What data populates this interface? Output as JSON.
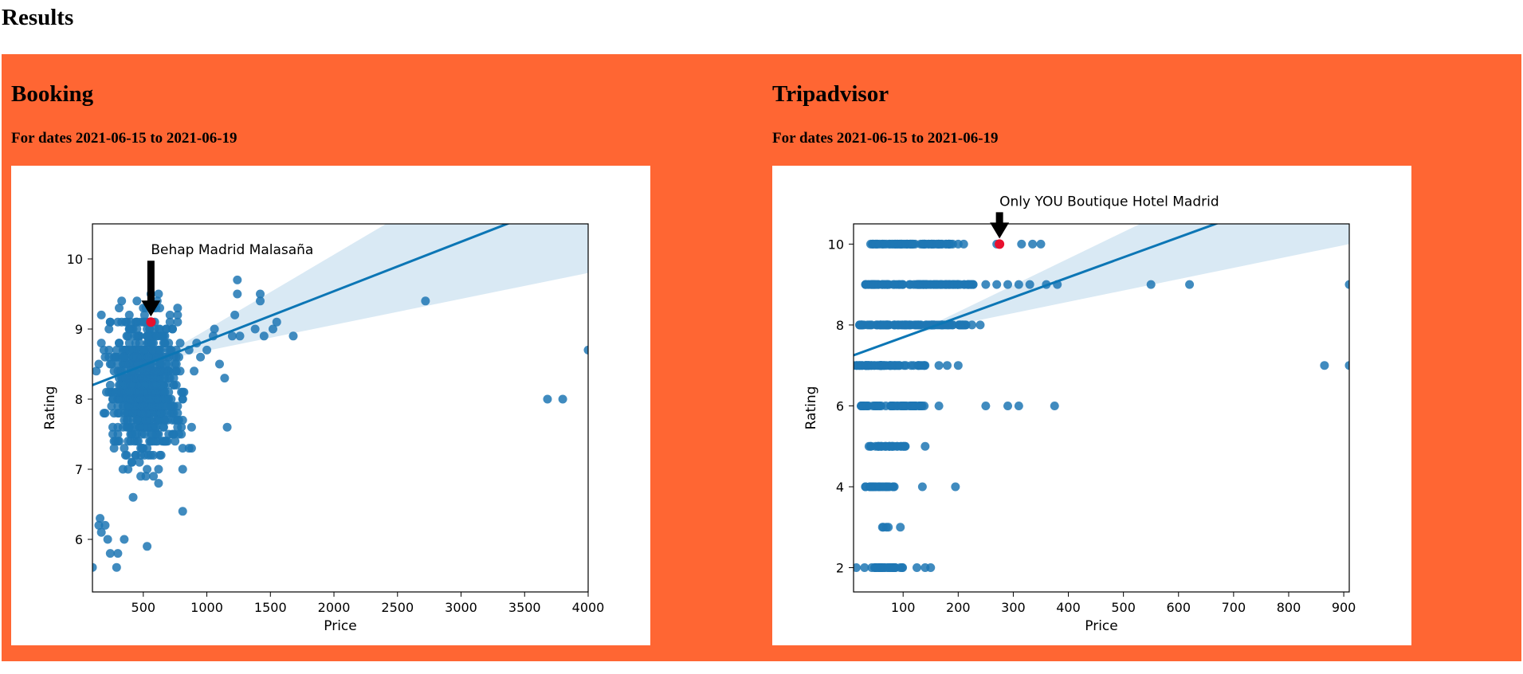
{
  "page": {
    "title": "Results"
  },
  "theme": {
    "panel_bg": "#ff6633",
    "point_color": "#1f77b4",
    "line_color": "#0c76b5",
    "band_color": "#c9dff0",
    "highlight_color": "#e8102e"
  },
  "sections": [
    {
      "name": "Booking",
      "subtitle": "For dates 2021-06-15 to 2021-06-19",
      "chart_data": {
        "type": "scatter",
        "xlabel": "Price",
        "ylabel": "Rating",
        "xlim": [
          100,
          4000
        ],
        "ylim": [
          5.25,
          10.5
        ],
        "xticks": [
          500,
          1000,
          1500,
          2000,
          2500,
          3000,
          3500,
          4000
        ],
        "yticks": [
          6,
          7,
          8,
          9,
          10
        ],
        "grid": false,
        "regression": {
          "x1": 100,
          "y1": 8.2,
          "x2": 4000,
          "y2": 10.95,
          "band_at_xmax": [
            9.8,
            12.2
          ]
        },
        "highlight": {
          "label": "Behap Madrid Malasaña",
          "x": 560,
          "y": 9.1
        },
        "outliers": [
          [
            100,
            5.6
          ],
          [
            150,
            6.2
          ],
          [
            160,
            6.3
          ],
          [
            170,
            6.1
          ],
          [
            200,
            6.2
          ],
          [
            220,
            6.0
          ],
          [
            240,
            5.8
          ],
          [
            290,
            5.6
          ],
          [
            300,
            5.8
          ],
          [
            350,
            6.0
          ],
          [
            420,
            6.6
          ],
          [
            480,
            6.9
          ],
          [
            520,
            6.9
          ],
          [
            530,
            5.9
          ],
          [
            620,
            6.8
          ],
          [
            700,
            8.0
          ],
          [
            740,
            8.3
          ],
          [
            770,
            7.8
          ],
          [
            810,
            6.4
          ],
          [
            800,
            7.5
          ],
          [
            810,
            7.3
          ],
          [
            820,
            8.1
          ],
          [
            860,
            7.3
          ],
          [
            880,
            7.6
          ],
          [
            880,
            7.3
          ],
          [
            900,
            8.4
          ],
          [
            920,
            8.8
          ],
          [
            950,
            8.6
          ],
          [
            1000,
            8.7
          ],
          [
            1050,
            8.9
          ],
          [
            1060,
            9.0
          ],
          [
            1100,
            8.5
          ],
          [
            1140,
            8.3
          ],
          [
            1160,
            7.6
          ],
          [
            1200,
            8.9
          ],
          [
            1220,
            9.2
          ],
          [
            1240,
            9.7
          ],
          [
            1240,
            9.5
          ],
          [
            1260,
            8.9
          ],
          [
            1380,
            9.0
          ],
          [
            1420,
            9.5
          ],
          [
            1420,
            9.4
          ],
          [
            1450,
            8.9
          ],
          [
            1520,
            9.0
          ],
          [
            1550,
            9.1
          ],
          [
            1680,
            8.9
          ],
          [
            2720,
            9.4
          ],
          [
            3680,
            8.0
          ],
          [
            3800,
            8.0
          ],
          [
            4000,
            8.7
          ]
        ],
        "cluster": {
          "x_range": [
            120,
            900
          ],
          "y_range": [
            6.5,
            9.9
          ],
          "count": 700
        }
      }
    },
    {
      "name": "Tripadvisor",
      "subtitle": "For dates 2021-06-15 to 2021-06-19",
      "chart_data": {
        "type": "scatter",
        "xlabel": "Price",
        "ylabel": "Rating",
        "xlim": [
          10,
          910
        ],
        "ylim": [
          1.4,
          10.5
        ],
        "xticks": [
          100,
          200,
          300,
          400,
          500,
          600,
          700,
          800,
          900
        ],
        "yticks": [
          2,
          4,
          6,
          8,
          10
        ],
        "grid": false,
        "regression": {
          "x1": 10,
          "y1": 7.25,
          "x2": 910,
          "y2": 11.7,
          "band_at_xmax": [
            10.0,
            13.0
          ]
        },
        "highlight": {
          "label": "Only YOU Boutique Hotel Madrid",
          "x": 275,
          "y": 10
        },
        "rows": [
          {
            "y": 10,
            "x_range": [
              40,
              190
            ],
            "count": 70
          },
          {
            "y": 9,
            "x_range": [
              30,
              230
            ],
            "count": 100
          },
          {
            "y": 8,
            "x_range": [
              20,
              215
            ],
            "count": 110
          },
          {
            "y": 7,
            "x_range": [
              15,
              140
            ],
            "count": 60
          },
          {
            "y": 6,
            "x_range": [
              20,
              140
            ],
            "count": 60
          },
          {
            "y": 5,
            "x_range": [
              30,
              105
            ],
            "count": 30
          },
          {
            "y": 4,
            "x_range": [
              30,
              90
            ],
            "count": 22
          },
          {
            "y": 3,
            "x_range": [
              50,
              80
            ],
            "count": 4
          },
          {
            "y": 2,
            "x_range": [
              40,
              100
            ],
            "count": 30
          }
        ],
        "points": [
          [
            200,
            10
          ],
          [
            210,
            10
          ],
          [
            270,
            10
          ],
          [
            315,
            10
          ],
          [
            335,
            10
          ],
          [
            350,
            10
          ],
          [
            250,
            9
          ],
          [
            270,
            9
          ],
          [
            290,
            9
          ],
          [
            310,
            9
          ],
          [
            330,
            9
          ],
          [
            360,
            9
          ],
          [
            380,
            9
          ],
          [
            550,
            9
          ],
          [
            620,
            9
          ],
          [
            910,
            9
          ],
          [
            225,
            8
          ],
          [
            240,
            8
          ],
          [
            10,
            7
          ],
          [
            165,
            7
          ],
          [
            180,
            7
          ],
          [
            200,
            7
          ],
          [
            165,
            6
          ],
          [
            250,
            6
          ],
          [
            290,
            6
          ],
          [
            310,
            6
          ],
          [
            375,
            6
          ],
          [
            140,
            5
          ],
          [
            135,
            4
          ],
          [
            195,
            4
          ],
          [
            95,
            3
          ],
          [
            15,
            2
          ],
          [
            30,
            2
          ],
          [
            125,
            2
          ],
          [
            140,
            2
          ],
          [
            150,
            2
          ],
          [
            865,
            7
          ],
          [
            910,
            7
          ]
        ]
      }
    }
  ]
}
